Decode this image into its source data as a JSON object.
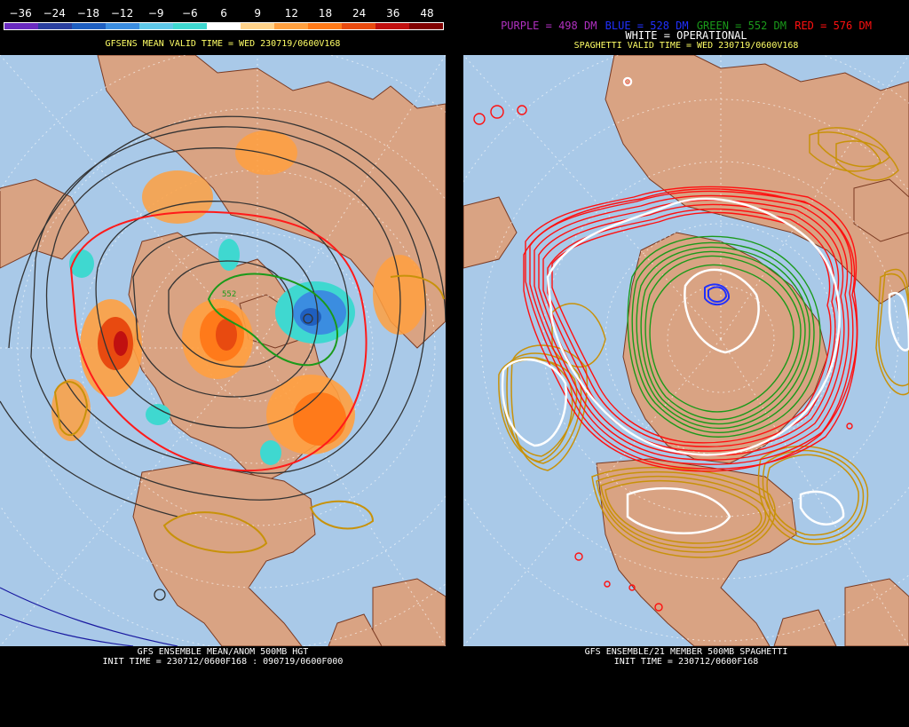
{
  "left": {
    "scale_values": [
      "−36",
      "−24",
      "−18",
      "−12",
      "−9",
      "−6",
      "6",
      "9",
      "12",
      "18",
      "24",
      "36",
      "48"
    ],
    "scale_colors": [
      "#6a2bbf",
      "#2b3f9e",
      "#1f5fc0",
      "#3b8de0",
      "#5fc8e8",
      "#3fd8d0",
      "#fff",
      "#ffd28a",
      "#ffa040",
      "#ff7a1a",
      "#e84a10",
      "#c01010",
      "#800000"
    ],
    "header": "GFSENS MEAN VALID TIME = WED 230719/0600V168",
    "footer_line1": "GFS ENSEMBLE MEAN/ANOM 500MB HGT",
    "footer_line2": "INIT TIME = 230712/0600F168 : 090719/0600F000",
    "contour_label": "552"
  },
  "right": {
    "legend": {
      "purple": "PURPLE = 498 DM",
      "blue": "BLUE = 528 DM",
      "green": "GREEN = 552 DM",
      "red": "RED = 576 DM",
      "white": "WHITE = OPERATIONAL"
    },
    "header": "SPAGHETTI VALID TIME = WED 230719/0600V168",
    "footer_line1": "GFS ENSEMBLE/21 MEMBER 500MB SPAGHETTI",
    "footer_line2": "INIT TIME = 230712/0600F168"
  },
  "colors": {
    "ocean": "#a9c9e8",
    "land": "#d9a383",
    "header_yellow": "#ffff66",
    "purple": "#b030c0",
    "blue": "#2030ff",
    "green": "#1a9a1a",
    "red": "#ff1010",
    "gold": "#c8920a"
  }
}
